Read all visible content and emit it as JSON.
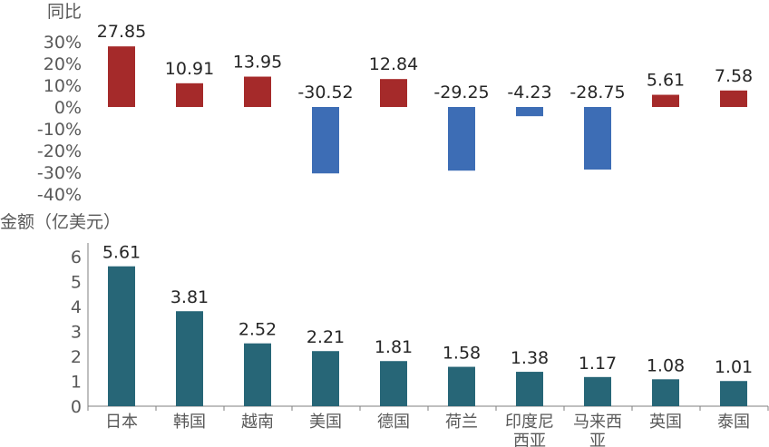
{
  "chart_data": [
    {
      "type": "bar",
      "ylabel": "同比",
      "ylim": [
        -40,
        30
      ],
      "yticks": [
        "30%",
        "20%",
        "10%",
        "0%",
        "-10%",
        "-20%",
        "-30%",
        "-40%"
      ],
      "categories": [
        "日本",
        "韩国",
        "越南",
        "美国",
        "德国",
        "荷兰",
        "印度尼西亚",
        "马来西亚",
        "英国",
        "泰国"
      ],
      "values": [
        27.85,
        10.91,
        13.95,
        -30.52,
        12.84,
        -29.25,
        -4.23,
        -28.75,
        5.61,
        7.58
      ],
      "data_labels": [
        "27.85",
        "10.91",
        "13.95",
        "-30.52",
        "12.84",
        "-29.25",
        "-4.23",
        "-28.75",
        "5.61",
        "7.58"
      ],
      "colors": {
        "positive": "#A52A2A",
        "negative": "#3D6DB5"
      },
      "grid": false
    },
    {
      "type": "bar",
      "ylabel": "金额（亿美元）",
      "ylim": [
        0,
        6
      ],
      "yticks": [
        "6",
        "5",
        "4",
        "3",
        "2",
        "1",
        "0"
      ],
      "categories": [
        "日本",
        "韩国",
        "越南",
        "美国",
        "德国",
        "荷兰",
        "印度尼西亚",
        "马来西亚",
        "英国",
        "泰国"
      ],
      "category_lines": [
        [
          "日本"
        ],
        [
          "韩国"
        ],
        [
          "越南"
        ],
        [
          "美国"
        ],
        [
          "德国"
        ],
        [
          "荷兰"
        ],
        [
          "印度尼",
          "西亚"
        ],
        [
          "马来西",
          "亚"
        ],
        [
          "英国"
        ],
        [
          "泰国"
        ]
      ],
      "values": [
        5.61,
        3.81,
        2.52,
        2.21,
        1.81,
        1.58,
        1.38,
        1.17,
        1.08,
        1.01
      ],
      "data_labels": [
        "5.61",
        "3.81",
        "2.52",
        "2.21",
        "1.81",
        "1.58",
        "1.38",
        "1.17",
        "1.08",
        "1.01"
      ],
      "colors": {
        "bar": "#276677",
        "axis": "#7F7F7F"
      },
      "grid": false
    }
  ]
}
